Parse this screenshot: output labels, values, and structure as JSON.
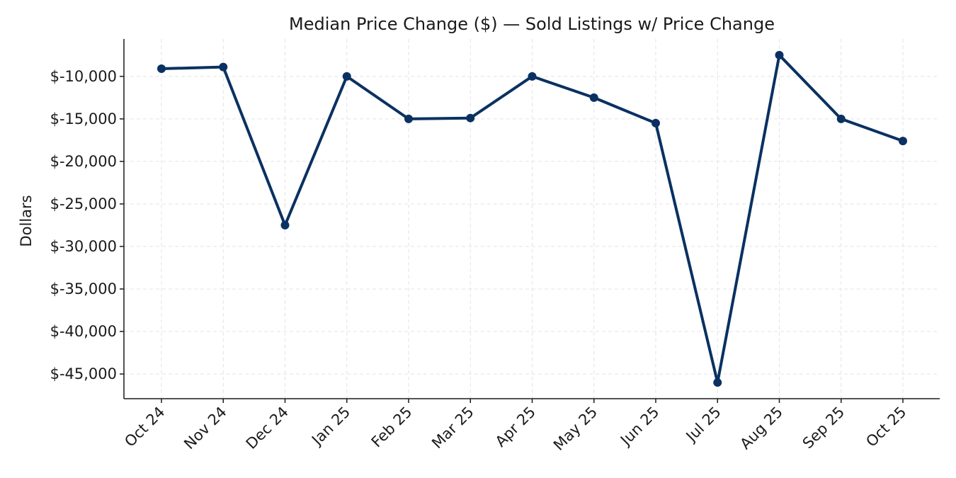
{
  "chart_data": {
    "type": "line",
    "title": "Median Price Change ($) — Sold Listings w/ Price Change",
    "y_label": "Dollars",
    "categories": [
      "Oct 24",
      "Nov 24",
      "Dec 24",
      "Jan 25",
      "Feb 25",
      "Mar 25",
      "Apr 25",
      "May 25",
      "Jun 25",
      "Jul 25",
      "Aug 25",
      "Sep 25",
      "Oct 25"
    ],
    "series": [
      {
        "name": "Median Price Change",
        "color": "#0a3161",
        "values": [
          -9100,
          -8900,
          -27500,
          -10000,
          -15000,
          -14900,
          -10000,
          -12500,
          -15500,
          -46000,
          -7500,
          -15000,
          -17600
        ]
      }
    ],
    "ylim": [
      -47900,
      -5600
    ],
    "yticks": [
      {
        "value": -45000,
        "label": "$-45,000"
      },
      {
        "value": -40000,
        "label": "$-40,000"
      },
      {
        "value": -35000,
        "label": "$-35,000"
      },
      {
        "value": -30000,
        "label": "$-30,000"
      },
      {
        "value": -25000,
        "label": "$-25,000"
      },
      {
        "value": -20000,
        "label": "$-20,000"
      },
      {
        "value": -15000,
        "label": "$-15,000"
      },
      {
        "value": -10000,
        "label": "$-10,000"
      }
    ],
    "grid": true
  }
}
